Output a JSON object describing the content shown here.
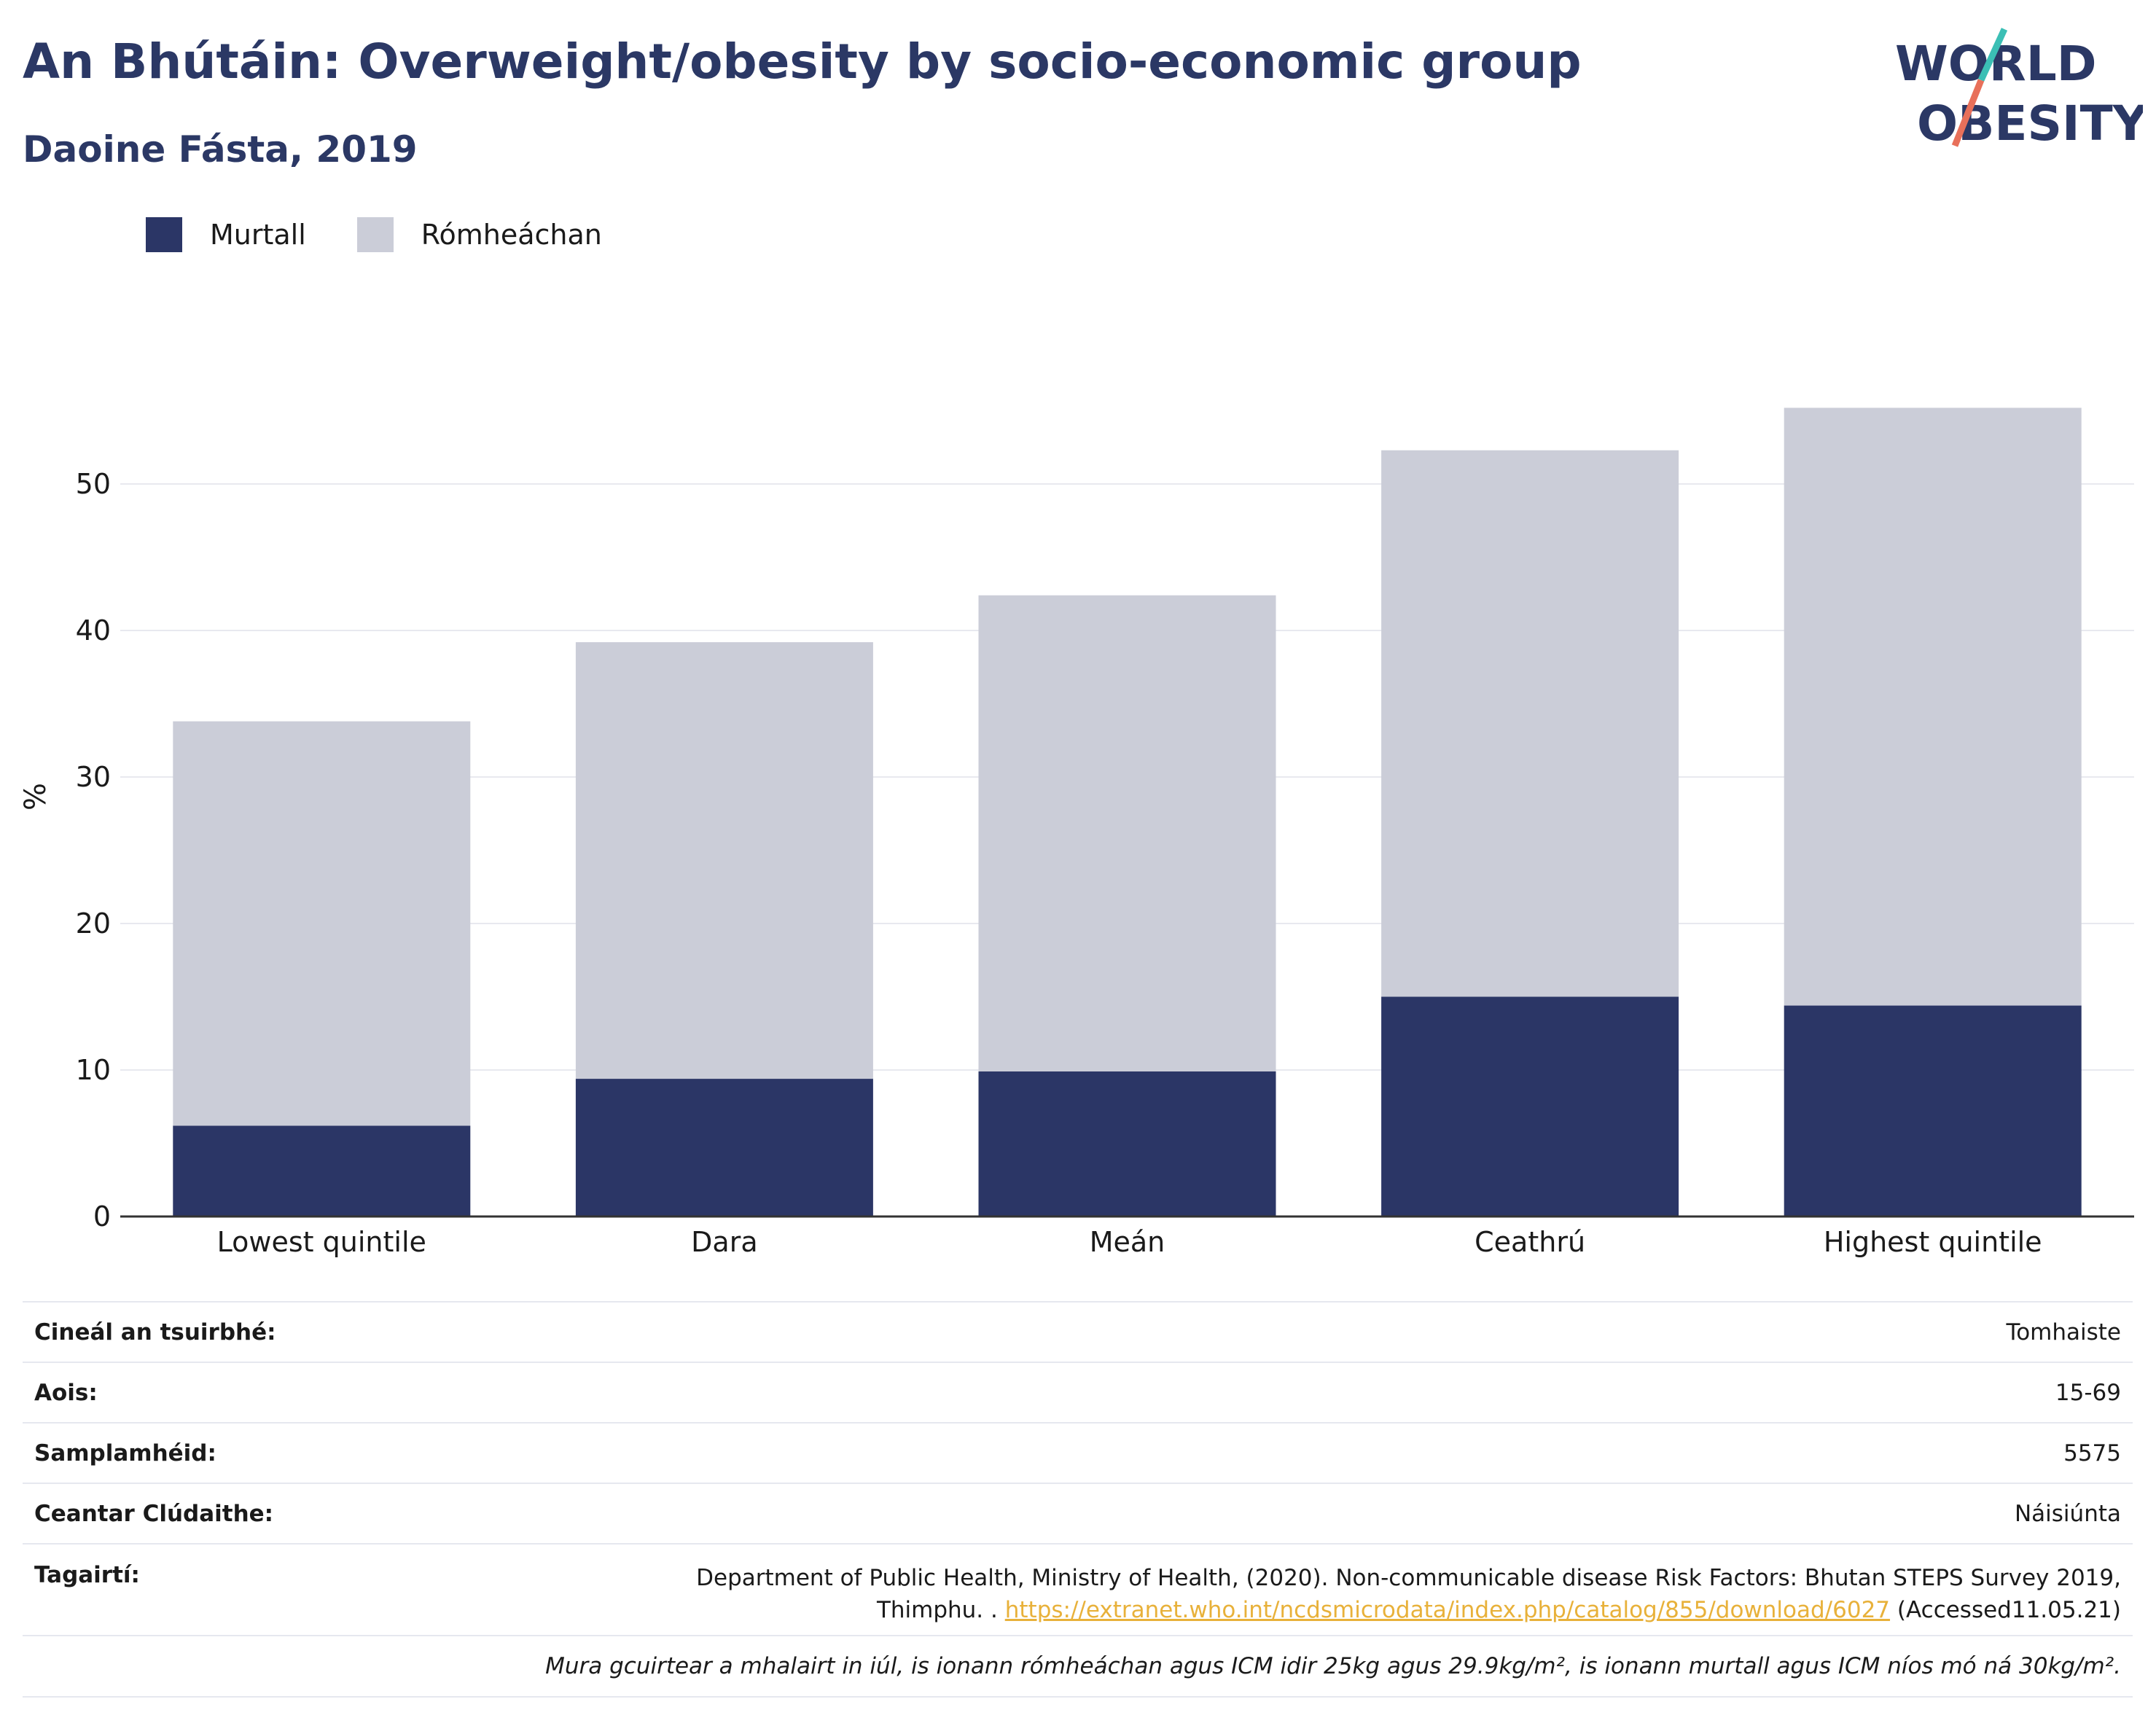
{
  "header": {
    "title": "An Bhútáin: Overweight/obesity by socio-economic group",
    "subtitle": "Daoine Fásta, 2019"
  },
  "logo": {
    "line1": "WORLD",
    "line2": "OBESITY"
  },
  "legend": [
    {
      "label": "Murtall",
      "color": "#2b3666"
    },
    {
      "label": "Rómheáchan",
      "color": "#cbcdd8"
    }
  ],
  "chart_data": {
    "type": "bar",
    "stacked": true,
    "categories": [
      "Lowest quintile",
      "Dara",
      "Meán",
      "Ceathrú",
      "Highest quintile"
    ],
    "series": [
      {
        "name": "Murtall",
        "values": [
          6.2,
          9.4,
          9.9,
          15.0,
          14.4
        ],
        "color": "#2b3666"
      },
      {
        "name": "Rómheáchan",
        "values": [
          27.6,
          29.8,
          32.5,
          37.3,
          40.8
        ],
        "color": "#cbcdd8"
      }
    ],
    "ylabel": "%",
    "ylim": [
      0,
      60
    ],
    "yticks": [
      0,
      10,
      20,
      30,
      40,
      50
    ],
    "grid": true
  },
  "meta": {
    "survey_type_label": "Cineál an tsuirbhé:",
    "survey_type_value": "Tomhaiste",
    "age_label": "Aois:",
    "age_value": "15-69",
    "sample_label": "Samplamhéid:",
    "sample_value": "5575",
    "area_label": "Ceantar Clúdaithe:",
    "area_value": "Náisiúnta",
    "ref_label": "Tagairtí:",
    "ref_text": "Department of Public Health, Ministry of Health, (2020). Non-communicable disease Risk Factors: Bhutan STEPS Survey 2019, Thimphu. .",
    "ref_link": "https://extranet.who.int/ncdsmicrodata/index.php/catalog/855/download/6027",
    "ref_accessed": "(Accessed11.05.21)",
    "note": "Mura gcuirtear a mhalairt in iúl, is ionann rómheáchan agus ICM idir 25kg agus 29.9kg/m², is ionann murtall agus ICM níos mó ná 30kg/m²."
  }
}
